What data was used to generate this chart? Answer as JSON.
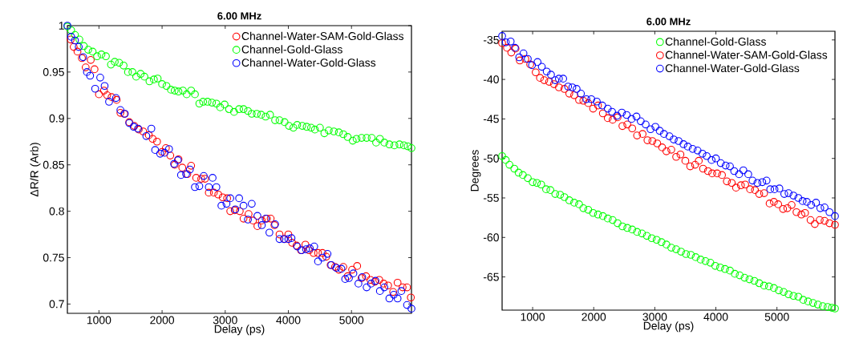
{
  "chart_data": [
    {
      "type": "scatter",
      "title": "6.00 MHz",
      "xlabel": "Delay (ps)",
      "ylabel": "ΔR/R (Arb)",
      "xlim": [
        500,
        5950
      ],
      "ylim": [
        0.69,
        1.0
      ],
      "xticks": [
        1000,
        2000,
        3000,
        4000,
        5000
      ],
      "yticks": [
        0.7,
        0.75,
        0.8,
        0.85,
        0.9,
        0.95,
        1
      ],
      "legend": "top right",
      "marker": "circle",
      "grid": false,
      "series": [
        {
          "name": "Channel-Water-SAM-Gold-Glass",
          "color": "#ff0000",
          "x": [
            553,
            600,
            660,
            730,
            790,
            870,
            930,
            1000,
            1080,
            1130,
            1200,
            1280,
            1340,
            1400,
            1480,
            1560,
            1630,
            1700,
            1790,
            1850,
            1920,
            2000,
            2060,
            2130,
            2200,
            2260,
            2320,
            2400,
            2460,
            2540,
            2620,
            2680,
            2740,
            2820,
            2890,
            2960,
            3030,
            3080,
            3150,
            3230,
            3290,
            3370,
            3440,
            3510,
            3580,
            3660,
            3720,
            3780,
            3860,
            3940,
            4000,
            4060,
            4130,
            4200,
            4270,
            4330,
            4400,
            4470,
            4540,
            4600,
            4670,
            4740,
            4800,
            4870,
            4940,
            5010,
            5090,
            5160,
            5230,
            5300,
            5370,
            5440,
            5510,
            5580,
            5660,
            5730,
            5810,
            5880,
            5940
          ],
          "values": [
            0.985,
            0.977,
            0.972,
            0.965,
            0.955,
            0.963,
            0.953,
            0.926,
            0.93,
            0.925,
            0.923,
            0.92,
            0.906,
            0.905,
            0.896,
            0.892,
            0.888,
            0.886,
            0.882,
            0.878,
            0.875,
            0.864,
            0.868,
            0.86,
            0.85,
            0.856,
            0.847,
            0.84,
            0.849,
            0.836,
            0.835,
            0.835,
            0.82,
            0.82,
            0.818,
            0.815,
            0.814,
            0.8,
            0.801,
            0.8,
            0.792,
            0.797,
            0.79,
            0.784,
            0.79,
            0.792,
            0.792,
            0.785,
            0.775,
            0.77,
            0.775,
            0.766,
            0.763,
            0.758,
            0.764,
            0.758,
            0.755,
            0.755,
            0.755,
            0.751,
            0.742,
            0.74,
            0.737,
            0.74,
            0.73,
            0.737,
            0.741,
            0.728,
            0.73,
            0.726,
            0.724,
            0.726,
            0.722,
            0.72,
            0.713,
            0.723,
            0.718,
            0.718,
            0.707
          ]
        },
        {
          "name": "Channel-Gold-Glass",
          "color": "#00ff00",
          "x": [
            500,
            560,
            620,
            690,
            760,
            830,
            900,
            970,
            1040,
            1110,
            1190,
            1250,
            1320,
            1390,
            1460,
            1530,
            1590,
            1660,
            1720,
            1800,
            1870,
            1930,
            2000,
            2070,
            2140,
            2200,
            2260,
            2330,
            2390,
            2460,
            2520,
            2590,
            2650,
            2720,
            2790,
            2860,
            2920,
            2990,
            3060,
            3140,
            3220,
            3290,
            3360,
            3420,
            3500,
            3570,
            3640,
            3710,
            3790,
            3860,
            3940,
            4010,
            4080,
            4140,
            4220,
            4290,
            4360,
            4420,
            4500,
            4570,
            4640,
            4720,
            4800,
            4870,
            4940,
            5020,
            5080,
            5160,
            5240,
            5320,
            5390,
            5450,
            5520,
            5600,
            5680,
            5760,
            5830,
            5890,
            5950
          ],
          "values": [
            0.999,
            0.995,
            0.99,
            0.985,
            0.978,
            0.974,
            0.972,
            0.967,
            0.969,
            0.967,
            0.958,
            0.961,
            0.96,
            0.957,
            0.95,
            0.95,
            0.945,
            0.948,
            0.945,
            0.94,
            0.942,
            0.943,
            0.937,
            0.935,
            0.931,
            0.93,
            0.929,
            0.93,
            0.926,
            0.93,
            0.926,
            0.916,
            0.918,
            0.918,
            0.917,
            0.916,
            0.912,
            0.915,
            0.91,
            0.907,
            0.91,
            0.91,
            0.908,
            0.905,
            0.905,
            0.904,
            0.902,
            0.904,
            0.898,
            0.898,
            0.896,
            0.892,
            0.89,
            0.893,
            0.892,
            0.891,
            0.89,
            0.888,
            0.89,
            0.884,
            0.887,
            0.886,
            0.885,
            0.883,
            0.88,
            0.876,
            0.878,
            0.879,
            0.879,
            0.879,
            0.874,
            0.878,
            0.874,
            0.872,
            0.871,
            0.872,
            0.871,
            0.87,
            0.868
          ]
        },
        {
          "name": "Channel-Water-Gold-Glass",
          "color": "#0000ff",
          "x": [
            500,
            560,
            620,
            680,
            750,
            810,
            860,
            940,
            1020,
            1090,
            1160,
            1270,
            1340,
            1410,
            1480,
            1550,
            1620,
            1750,
            1830,
            1890,
            1970,
            2040,
            2110,
            2190,
            2250,
            2300,
            2380,
            2440,
            2520,
            2590,
            2660,
            2740,
            2800,
            2860,
            2940,
            3020,
            3080,
            3160,
            3220,
            3290,
            3360,
            3420,
            3510,
            3580,
            3640,
            3700,
            3790,
            3860,
            3930,
            4000,
            4050,
            4140,
            4210,
            4280,
            4340,
            4410,
            4470,
            4540,
            4620,
            4680,
            4760,
            4840,
            4900,
            4960,
            5030,
            5110,
            5170,
            5240,
            5310,
            5380,
            5450,
            5520,
            5600,
            5670,
            5730,
            5790,
            5880,
            5950
          ],
          "values": [
            1.0,
            0.988,
            0.984,
            0.977,
            0.966,
            0.95,
            0.946,
            0.932,
            0.944,
            0.935,
            0.918,
            0.922,
            0.909,
            0.905,
            0.895,
            0.891,
            0.889,
            0.881,
            0.889,
            0.866,
            0.862,
            0.863,
            0.867,
            0.851,
            0.855,
            0.839,
            0.84,
            0.845,
            0.826,
            0.827,
            0.838,
            0.826,
            0.836,
            0.826,
            0.806,
            0.808,
            0.814,
            0.802,
            0.814,
            0.806,
            0.791,
            0.808,
            0.795,
            0.785,
            0.792,
            0.777,
            0.786,
            0.77,
            0.77,
            0.77,
            0.771,
            0.762,
            0.758,
            0.759,
            0.76,
            0.762,
            0.746,
            0.75,
            0.754,
            0.742,
            0.739,
            0.738,
            0.727,
            0.728,
            0.733,
            0.722,
            0.729,
            0.718,
            0.722,
            0.725,
            0.714,
            0.718,
            0.706,
            0.71,
            0.706,
            0.714,
            0.699,
            0.695
          ]
        }
      ]
    },
    {
      "type": "scatter",
      "title": "6.00 MHz",
      "xlabel": "Delay (ps)",
      "ylabel": "Degrees",
      "xlim": [
        500,
        5950
      ],
      "ylim": [
        -69.2,
        -33.9
      ],
      "xticks": [
        1000,
        2000,
        3000,
        4000,
        5000
      ],
      "yticks": [
        -65,
        -60,
        -55,
        -50,
        -45,
        -40,
        -35
      ],
      "legend": "top right",
      "marker": "circle",
      "grid": false,
      "series": [
        {
          "name": "Channel-Gold-Glass",
          "color": "#00ff00",
          "x": [
            500,
            560,
            620,
            700,
            770,
            840,
            920,
            1000,
            1070,
            1140,
            1220,
            1290,
            1370,
            1450,
            1520,
            1600,
            1680,
            1760,
            1830,
            1910,
            1990,
            2070,
            2150,
            2230,
            2310,
            2390,
            2470,
            2550,
            2630,
            2710,
            2790,
            2870,
            2950,
            3030,
            3110,
            3190,
            3270,
            3350,
            3430,
            3510,
            3590,
            3670,
            3750,
            3830,
            3910,
            3990,
            4070,
            4150,
            4230,
            4310,
            4390,
            4470,
            4550,
            4630,
            4710,
            4790,
            4870,
            4950,
            5030,
            5110,
            5190,
            5270,
            5350,
            5430,
            5510,
            5590,
            5670,
            5750,
            5830,
            5900,
            5950
          ],
          "values": [
            -49.7,
            -50.2,
            -50.8,
            -51.3,
            -51.8,
            -52.1,
            -52.5,
            -53.0,
            -53.1,
            -53.3,
            -53.9,
            -54.0,
            -54.5,
            -54.6,
            -54.9,
            -55.3,
            -55.6,
            -55.8,
            -56.3,
            -56.5,
            -56.9,
            -57.1,
            -57.3,
            -57.6,
            -57.8,
            -58.2,
            -58.6,
            -58.8,
            -59.0,
            -59.3,
            -59.5,
            -59.8,
            -60.1,
            -60.3,
            -60.6,
            -60.9,
            -61.3,
            -61.5,
            -61.8,
            -62.1,
            -62.2,
            -62.5,
            -62.8,
            -63.0,
            -63.2,
            -63.6,
            -63.8,
            -64.0,
            -64.2,
            -64.6,
            -64.8,
            -65.1,
            -65.3,
            -65.5,
            -65.8,
            -66.1,
            -66.2,
            -66.4,
            -66.7,
            -66.9,
            -67.2,
            -67.4,
            -67.5,
            -67.9,
            -68.1,
            -68.3,
            -68.5,
            -68.7,
            -68.8,
            -68.9,
            -69.0
          ]
        },
        {
          "name": "Channel-Water-SAM-Gold-Glass",
          "color": "#ff0000",
          "x": [
            500,
            580,
            650,
            720,
            790,
            880,
            960,
            1050,
            1120,
            1190,
            1270,
            1350,
            1430,
            1520,
            1600,
            1680,
            1760,
            1830,
            1910,
            1990,
            2070,
            2150,
            2230,
            2310,
            2390,
            2470,
            2550,
            2630,
            2710,
            2800,
            2880,
            2960,
            3040,
            3120,
            3190,
            3270,
            3350,
            3420,
            3500,
            3580,
            3660,
            3720,
            3790,
            3870,
            3940,
            4020,
            4100,
            4180,
            4260,
            4330,
            4410,
            4480,
            4560,
            4640,
            4710,
            4790,
            4880,
            4950,
            5020,
            5100,
            5170,
            5240,
            5320,
            5400,
            5460,
            5550,
            5620,
            5700,
            5780,
            5860,
            5950
          ],
          "values": [
            -35.4,
            -36.0,
            -36.6,
            -36.1,
            -37.6,
            -37.4,
            -38.1,
            -39.1,
            -39.8,
            -40.1,
            -40.3,
            -40.6,
            -41.0,
            -41.2,
            -41.8,
            -42.0,
            -42.6,
            -42.7,
            -43.0,
            -43.7,
            -43.3,
            -44.3,
            -44.9,
            -45.1,
            -44.8,
            -45.9,
            -45.7,
            -46.2,
            -47.1,
            -46.9,
            -47.7,
            -47.8,
            -48.1,
            -48.6,
            -49.1,
            -48.9,
            -49.8,
            -49.5,
            -50.3,
            -51.0,
            -50.8,
            -50.3,
            -51.3,
            -51.6,
            -51.9,
            -51.9,
            -52.1,
            -52.9,
            -53.1,
            -53.7,
            -53.4,
            -53.3,
            -53.9,
            -54.0,
            -54.5,
            -54.4,
            -55.7,
            -55.5,
            -55.8,
            -56.4,
            -56.3,
            -55.9,
            -56.8,
            -57.1,
            -56.9,
            -57.8,
            -58.3,
            -57.8,
            -57.9,
            -58.2,
            -58.4
          ]
        },
        {
          "name": "Channel-Water-Gold-Glass",
          "color": "#0000ff",
          "x": [
            500,
            560,
            640,
            710,
            780,
            850,
            920,
            990,
            1080,
            1150,
            1230,
            1300,
            1370,
            1430,
            1500,
            1580,
            1650,
            1720,
            1790,
            1880,
            1960,
            2050,
            2140,
            2230,
            2300,
            2380,
            2460,
            2540,
            2620,
            2700,
            2770,
            2850,
            2930,
            3010,
            3080,
            3150,
            3240,
            3310,
            3390,
            3470,
            3540,
            3620,
            3700,
            3780,
            3850,
            3930,
            4000,
            4080,
            4160,
            4230,
            4300,
            4380,
            4450,
            4530,
            4600,
            4680,
            4760,
            4830,
            4890,
            4960,
            5040,
            5120,
            5190,
            5270,
            5350,
            5420,
            5490,
            5560,
            5640,
            5710,
            5780,
            5860,
            5950
          ],
          "values": [
            -34.5,
            -35.3,
            -35.2,
            -36.0,
            -37.2,
            -36.7,
            -37.4,
            -38.2,
            -37.8,
            -38.4,
            -39.0,
            -39.4,
            -40.1,
            -39.9,
            -39.9,
            -40.9,
            -41.0,
            -41.2,
            -41.8,
            -42.5,
            -42.5,
            -42.8,
            -43.3,
            -43.7,
            -44.1,
            -44.6,
            -44.2,
            -44.5,
            -45.0,
            -44.7,
            -45.3,
            -45.7,
            -46.3,
            -46.0,
            -46.5,
            -46.9,
            -47.2,
            -47.6,
            -47.8,
            -48.2,
            -48.5,
            -48.8,
            -49.0,
            -49.4,
            -49.7,
            -50.2,
            -50.0,
            -50.6,
            -50.9,
            -51.0,
            -51.6,
            -52.0,
            -51.5,
            -52.0,
            -52.8,
            -53.1,
            -53.0,
            -52.8,
            -53.9,
            -53.9,
            -53.8,
            -54.5,
            -54.4,
            -54.7,
            -55.0,
            -55.4,
            -55.5,
            -55.9,
            -55.6,
            -56.3,
            -56.2,
            -56.8,
            -57.3
          ]
        }
      ]
    }
  ]
}
